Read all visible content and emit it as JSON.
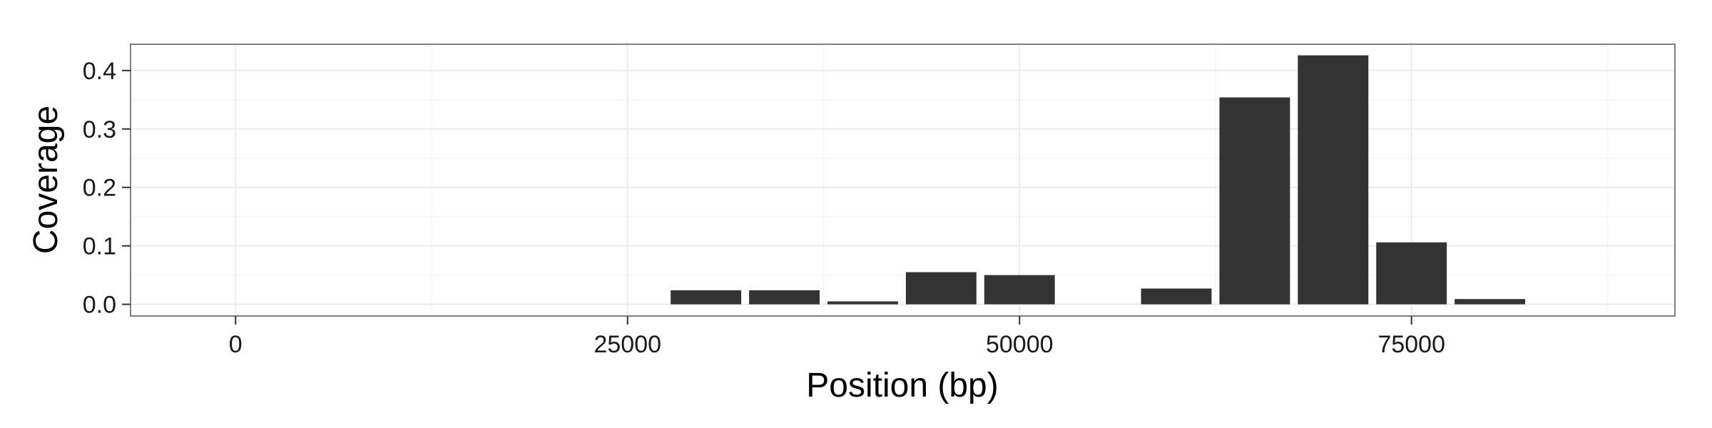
{
  "chart_data": {
    "type": "bar",
    "title": "",
    "xlabel": "Position (bp)",
    "ylabel": "Coverage",
    "xlim": [
      -6700,
      91800
    ],
    "ylim": [
      -0.02,
      0.445
    ],
    "x_ticks": [
      0,
      25000,
      50000,
      75000
    ],
    "x_tick_labels": [
      "0",
      "25000",
      "50000",
      "75000"
    ],
    "y_ticks": [
      0.0,
      0.1,
      0.2,
      0.3,
      0.4
    ],
    "y_tick_labels": [
      "0.0",
      "0.1",
      "0.2",
      "0.3",
      "0.4"
    ],
    "grid": true,
    "legend": "none",
    "bar_width": 4500,
    "bars": [
      {
        "x": 30000,
        "value": 0.024
      },
      {
        "x": 35000,
        "value": 0.024
      },
      {
        "x": 40000,
        "value": 0.005
      },
      {
        "x": 45000,
        "value": 0.055
      },
      {
        "x": 50000,
        "value": 0.05
      },
      {
        "x": 60000,
        "value": 0.027
      },
      {
        "x": 65000,
        "value": 0.354
      },
      {
        "x": 70000,
        "value": 0.426
      },
      {
        "x": 75000,
        "value": 0.106
      },
      {
        "x": 80000,
        "value": 0.009
      }
    ],
    "colors": {
      "bar": "#333333",
      "panel_border": "#7f7f7f",
      "grid_major": "#ebebeb",
      "grid_minor": "#f6f6f6",
      "tick": "#333333"
    }
  }
}
